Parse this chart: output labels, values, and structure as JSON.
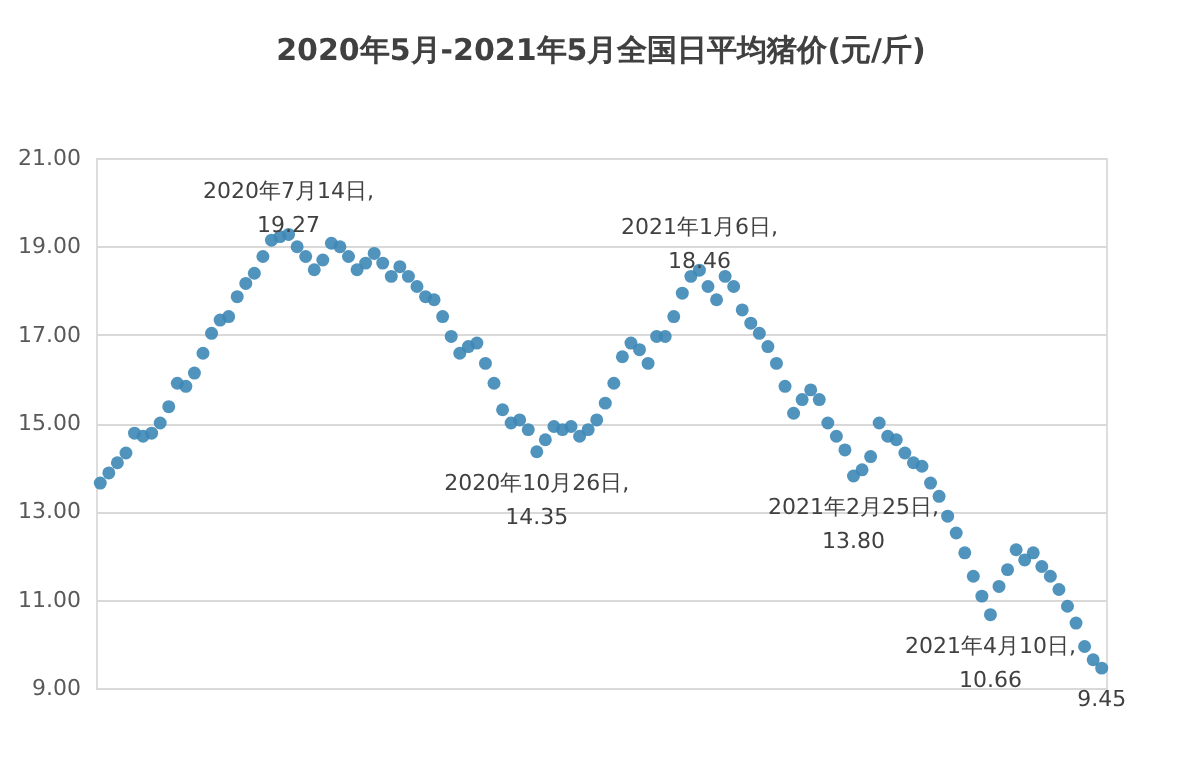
{
  "chart_data": {
    "type": "scatter",
    "title": "2020年5月-2021年5月全国日平均猪价(元/斤)",
    "categories": [
      null,
      null,
      null,
      null,
      null,
      null,
      null,
      null,
      null,
      null,
      null,
      null,
      null,
      null,
      null,
      null,
      null,
      null,
      null,
      null,
      null,
      null,
      null,
      null,
      null,
      null,
      null,
      null,
      null,
      null,
      null,
      null,
      null,
      null,
      null,
      null,
      null,
      null,
      null,
      null,
      null,
      null,
      null,
      null,
      null,
      null,
      null,
      null,
      null,
      null,
      null,
      null,
      null,
      null,
      null,
      null,
      null,
      null,
      null,
      null,
      null,
      null,
      null,
      null,
      null,
      null,
      null,
      null,
      null,
      null,
      null,
      null,
      null,
      null,
      null,
      null,
      null,
      null,
      null,
      null,
      null,
      null,
      null,
      null,
      null,
      null,
      null,
      null,
      null,
      null,
      null,
      null,
      null,
      null,
      null,
      null,
      null,
      null,
      null,
      null,
      null,
      null,
      null,
      null,
      null,
      null,
      null,
      null,
      null,
      null,
      null,
      null,
      null,
      null,
      null,
      null,
      null,
      null
    ],
    "series": [
      {
        "color": "#3d87b6",
        "values": [
          13.64,
          13.87,
          14.1,
          14.32,
          14.77,
          14.7,
          14.77,
          15.0,
          15.37,
          15.9,
          15.83,
          16.13,
          16.58,
          17.03,
          17.33,
          17.41,
          17.86,
          18.16,
          18.39,
          18.77,
          19.14,
          19.22,
          19.27,
          18.99,
          18.77,
          18.47,
          18.69,
          19.07,
          18.99,
          18.77,
          18.47,
          18.62,
          18.84,
          18.62,
          18.32,
          18.54,
          18.32,
          18.09,
          17.86,
          17.79,
          17.41,
          16.96,
          16.58,
          16.73,
          16.81,
          16.35,
          15.9,
          15.3,
          15.0,
          15.07,
          14.85,
          14.35,
          14.62,
          14.92,
          14.85,
          14.92,
          14.7,
          14.85,
          15.07,
          15.45,
          15.9,
          16.5,
          16.81,
          16.66,
          16.35,
          16.96,
          16.96,
          17.41,
          17.94,
          18.32,
          18.46,
          18.09,
          17.79,
          18.32,
          18.09,
          17.56,
          17.26,
          17.03,
          16.73,
          16.35,
          15.83,
          15.22,
          15.53,
          15.75,
          15.53,
          15.0,
          14.7,
          14.39,
          13.8,
          13.94,
          14.24,
          15.0,
          14.7,
          14.62,
          14.32,
          14.1,
          14.02,
          13.64,
          13.34,
          12.89,
          12.51,
          12.06,
          11.53,
          11.08,
          10.66,
          11.3,
          11.68,
          12.13,
          11.9,
          12.06,
          11.75,
          11.53,
          11.23,
          10.85,
          10.47,
          9.94,
          9.64,
          9.45
        ]
      }
    ],
    "ylim": [
      9,
      21
    ],
    "yticks": [
      {
        "value": 9,
        "label": "9.00"
      },
      {
        "value": 11,
        "label": "11.00"
      },
      {
        "value": 13,
        "label": "13.00"
      },
      {
        "value": 15,
        "label": "15.00"
      },
      {
        "value": 17,
        "label": "17.00"
      },
      {
        "value": 19,
        "label": "19.00"
      },
      {
        "value": 21,
        "label": "21.00"
      }
    ],
    "grid": "y",
    "marker": "circle",
    "tick_labels": "y",
    "annotations": [
      {
        "text": "2020年7月14日,\n19.27",
        "y": 19.27
      },
      {
        "text": "2020年10月26日,\n14.35",
        "y": 14.35
      },
      {
        "text": "2021年1月6日,\n18.46",
        "y": 18.46
      },
      {
        "text": "2021年2月25日,\n13.80",
        "y": 13.8
      },
      {
        "text": "2021年4月10日,\n10.66",
        "y": 10.66
      },
      {
        "text": "9.45",
        "y": 9.45
      }
    ]
  }
}
